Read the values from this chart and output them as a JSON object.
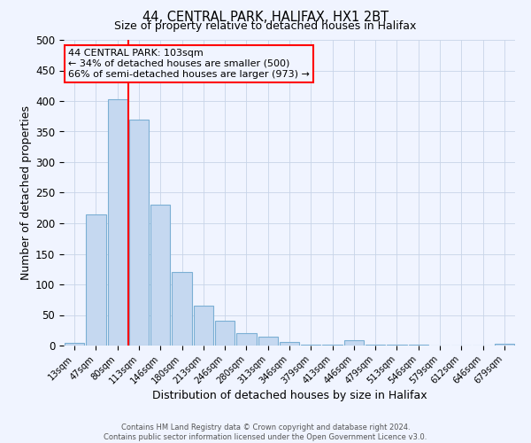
{
  "title": "44, CENTRAL PARK, HALIFAX, HX1 2BT",
  "subtitle": "Size of property relative to detached houses in Halifax",
  "xlabel": "Distribution of detached houses by size in Halifax",
  "ylabel": "Number of detached properties",
  "bar_labels": [
    "13sqm",
    "47sqm",
    "80sqm",
    "113sqm",
    "146sqm",
    "180sqm",
    "213sqm",
    "246sqm",
    "280sqm",
    "313sqm",
    "346sqm",
    "379sqm",
    "413sqm",
    "446sqm",
    "479sqm",
    "513sqm",
    "546sqm",
    "579sqm",
    "612sqm",
    "646sqm",
    "679sqm"
  ],
  "bar_values": [
    5,
    215,
    403,
    370,
    230,
    120,
    65,
    40,
    20,
    14,
    6,
    2,
    1,
    8,
    2,
    2,
    1,
    0,
    0,
    0,
    3
  ],
  "bar_color": "#c5d8f0",
  "bar_edge_color": "#7bafd4",
  "vline_index": 2.5,
  "vline_color": "red",
  "ylim": [
    0,
    500
  ],
  "yticks": [
    0,
    50,
    100,
    150,
    200,
    250,
    300,
    350,
    400,
    450,
    500
  ],
  "annotation_title": "44 CENTRAL PARK: 103sqm",
  "annotation_line1": "← 34% of detached houses are smaller (500)",
  "annotation_line2": "66% of semi-detached houses are larger (973) →",
  "annotation_box_color": "red",
  "footer_line1": "Contains HM Land Registry data © Crown copyright and database right 2024.",
  "footer_line2": "Contains public sector information licensed under the Open Government Licence v3.0.",
  "bg_color": "#f0f4ff",
  "grid_color": "#c8d4e8"
}
